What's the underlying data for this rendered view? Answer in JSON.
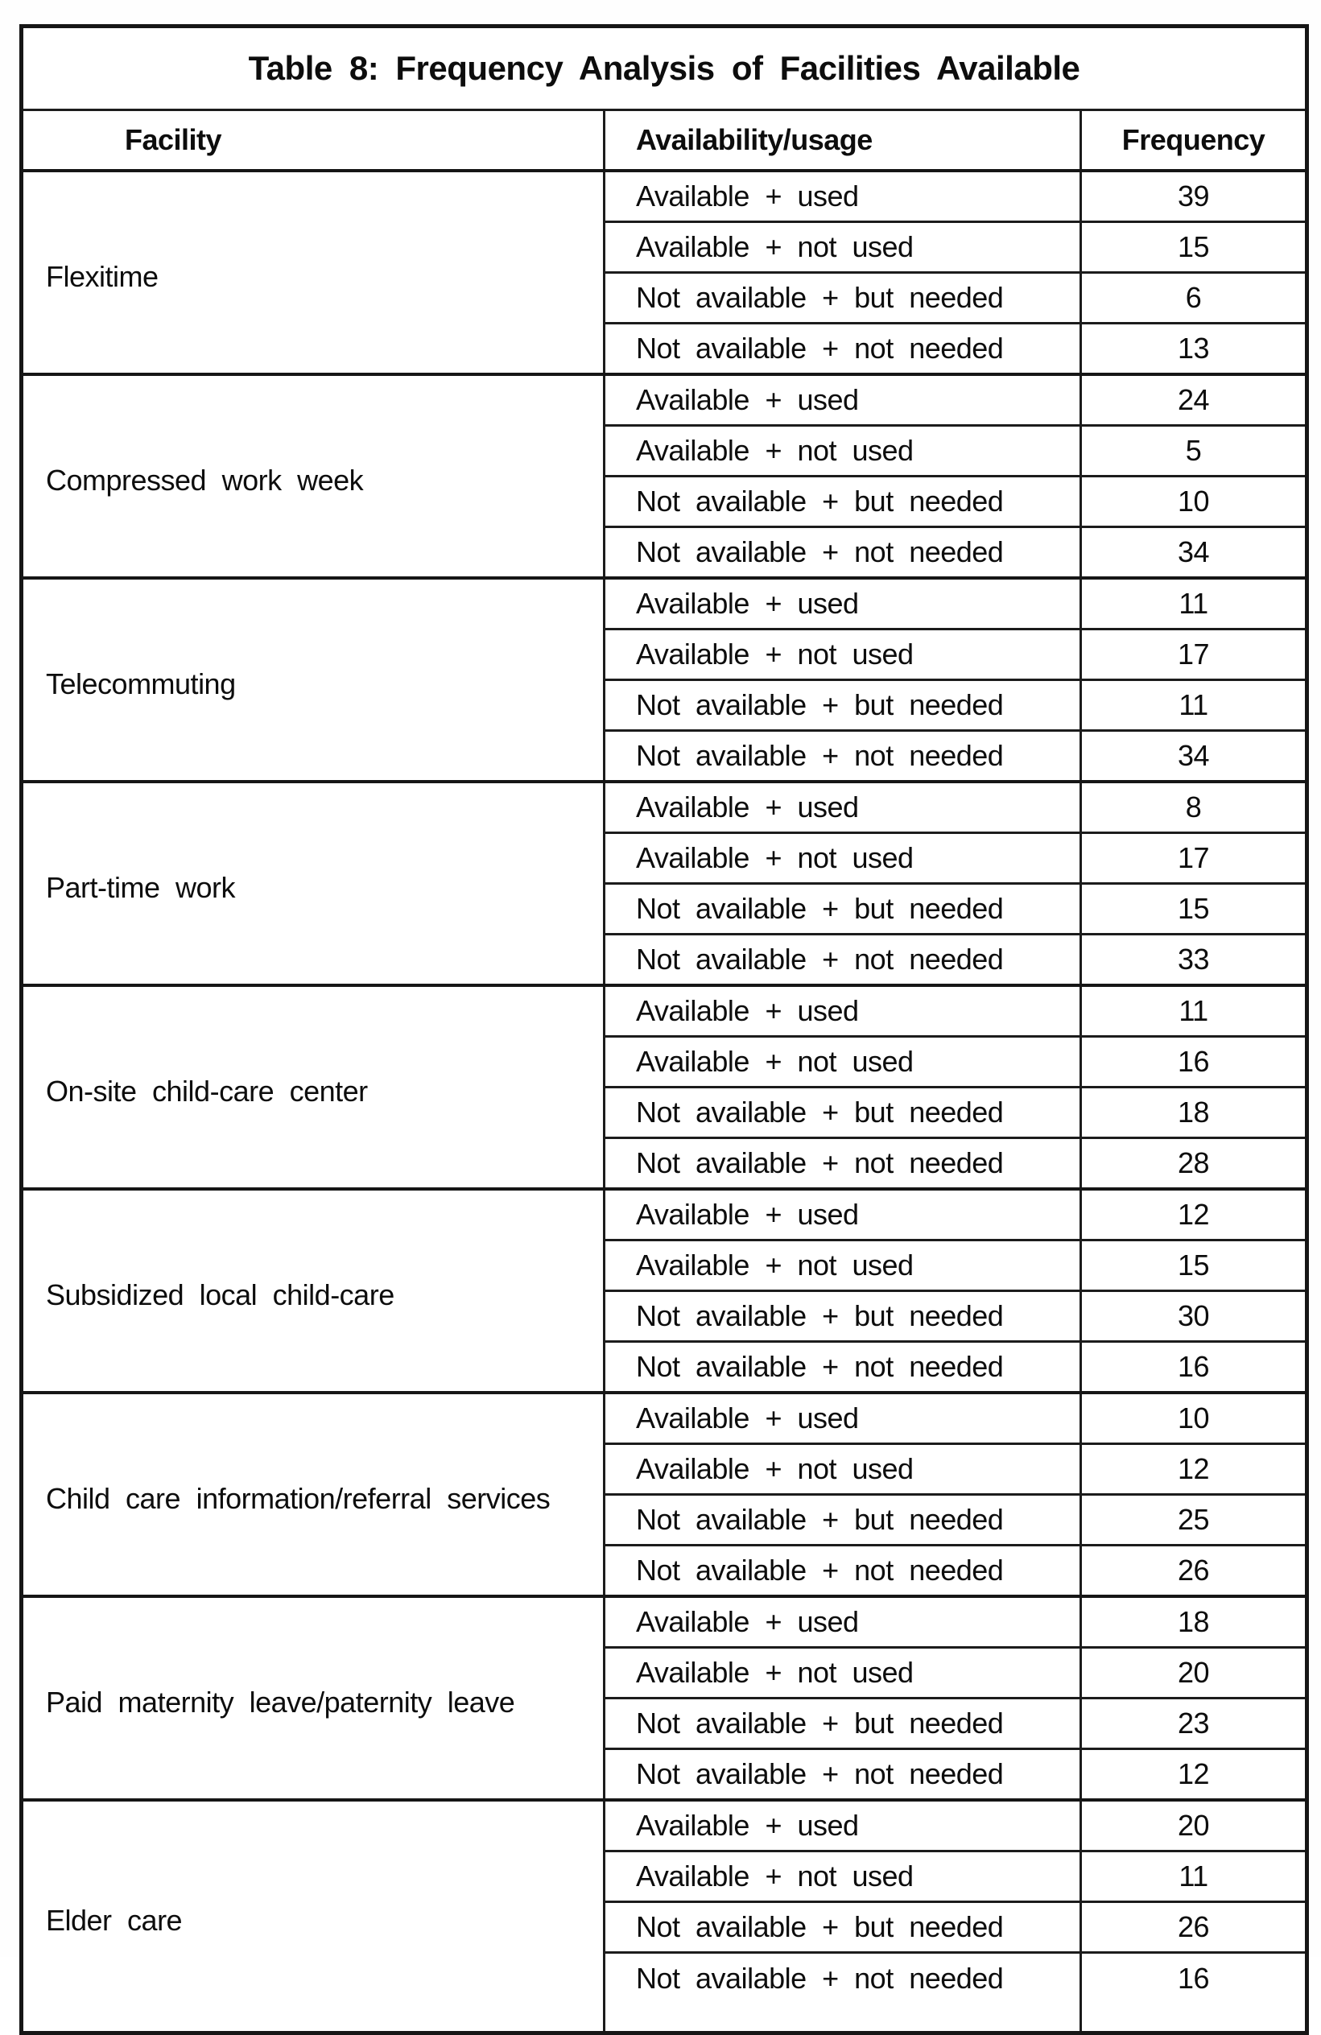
{
  "table": {
    "title": "Table 8: Frequency Analysis of Facilities Available",
    "columns": [
      "Facility",
      "Availability/usage",
      "Frequency"
    ],
    "facilities": [
      {
        "name": "Flexitime",
        "rows": [
          {
            "usage": "Available + used",
            "frequency": "39"
          },
          {
            "usage": "Available + not used",
            "frequency": "15"
          },
          {
            "usage": "Not available + but needed",
            "frequency": "6"
          },
          {
            "usage": "Not available + not needed",
            "frequency": "13"
          }
        ]
      },
      {
        "name": "Compressed work week",
        "rows": [
          {
            "usage": "Available + used",
            "frequency": "24"
          },
          {
            "usage": "Available + not used",
            "frequency": "5"
          },
          {
            "usage": "Not available + but needed",
            "frequency": "10"
          },
          {
            "usage": "Not available + not needed",
            "frequency": "34"
          }
        ]
      },
      {
        "name": "Telecommuting",
        "rows": [
          {
            "usage": "Available + used",
            "frequency": "11"
          },
          {
            "usage": "Available + not used",
            "frequency": "17"
          },
          {
            "usage": "Not available + but needed",
            "frequency": "11"
          },
          {
            "usage": "Not available + not needed",
            "frequency": "34"
          }
        ]
      },
      {
        "name": "Part-time work",
        "rows": [
          {
            "usage": "Available + used",
            "frequency": "8"
          },
          {
            "usage": "Available + not used",
            "frequency": "17"
          },
          {
            "usage": "Not available + but needed",
            "frequency": "15"
          },
          {
            "usage": "Not available + not needed",
            "frequency": "33"
          }
        ]
      },
      {
        "name": "On-site child-care center",
        "rows": [
          {
            "usage": "Available + used",
            "frequency": "11"
          },
          {
            "usage": "Available + not used",
            "frequency": "16"
          },
          {
            "usage": "Not available + but needed",
            "frequency": "18"
          },
          {
            "usage": "Not available + not needed",
            "frequency": "28"
          }
        ]
      },
      {
        "name": "Subsidized local child-care",
        "rows": [
          {
            "usage": "Available + used",
            "frequency": "12"
          },
          {
            "usage": "Available + not used",
            "frequency": "15"
          },
          {
            "usage": "Not available + but needed",
            "frequency": "30"
          },
          {
            "usage": "Not available + not needed",
            "frequency": "16"
          }
        ]
      },
      {
        "name": "Child care information/referral services",
        "rows": [
          {
            "usage": "Available + used",
            "frequency": "10"
          },
          {
            "usage": "Available + not used",
            "frequency": "12"
          },
          {
            "usage": "Not available + but needed",
            "frequency": "25"
          },
          {
            "usage": "Not available + not needed",
            "frequency": "26"
          }
        ]
      },
      {
        "name": "Paid maternity leave/paternity leave",
        "rows": [
          {
            "usage": "Available + used",
            "frequency": "18"
          },
          {
            "usage": "Available + not used",
            "frequency": "20"
          },
          {
            "usage": "Not available + but needed",
            "frequency": "23"
          },
          {
            "usage": "Not available + not needed",
            "frequency": "12"
          }
        ]
      },
      {
        "name": "Elder care",
        "rows": [
          {
            "usage": "Available + used",
            "frequency": "20"
          },
          {
            "usage": "Available + not used",
            "frequency": "11"
          },
          {
            "usage": "Not available + but needed",
            "frequency": "26"
          },
          {
            "usage": "Not available + not needed",
            "frequency": "16"
          }
        ]
      }
    ],
    "colors": {
      "background": "#ffffff",
      "text": "#0d0d0d",
      "border": "#1c1c1c"
    }
  }
}
